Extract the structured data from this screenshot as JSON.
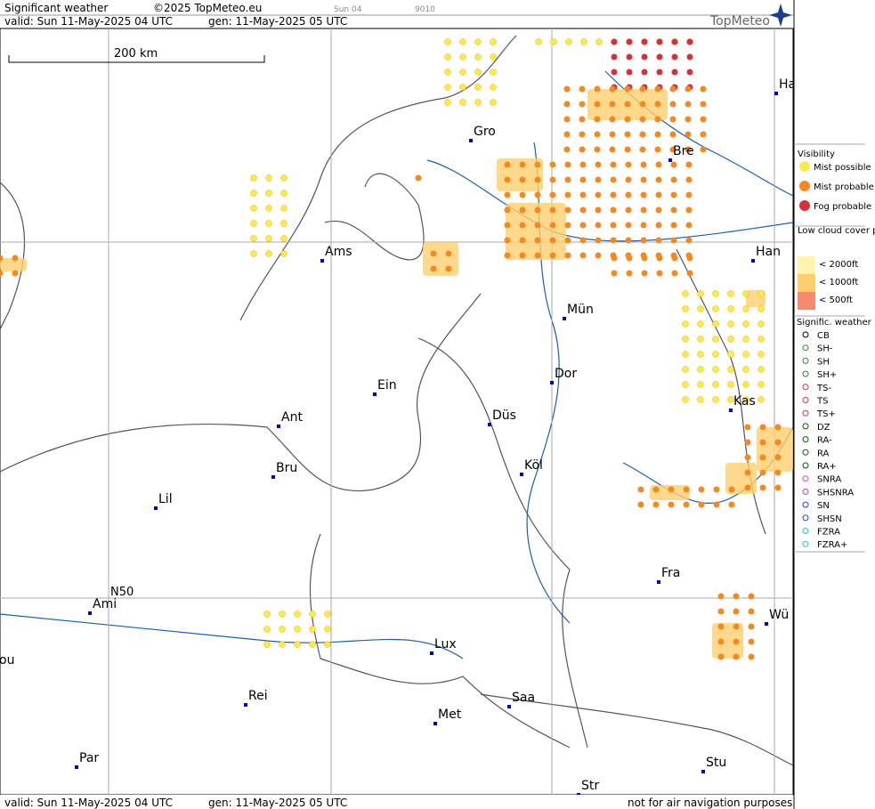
{
  "header": {
    "title": "Significant weather",
    "copyright": "©2025 TopMeteo.eu",
    "run": "Sun 04",
    "code": "9010",
    "valid": "valid:  Sun  11-May-2025  04 UTC",
    "generated": "gen: 11-May-2025 05 UTC",
    "logo": "TopMeteo"
  },
  "map": {
    "scale": "200 km",
    "latitude_label": "N50",
    "cities": [
      "Ha",
      "Gro",
      "Bre",
      "Ams",
      "Han",
      "Mün",
      "Dor",
      "Ein",
      "Kas",
      "Ant",
      "Düs",
      "Bru",
      "Köl",
      "Lil",
      "Ami",
      "Fra",
      "Wü",
      "Lux",
      "ou",
      "Rei",
      "Saa",
      "Met",
      "Par",
      "Stu",
      "Str"
    ]
  },
  "legend": {
    "visibility": {
      "title": "Visibility",
      "items": [
        "Mist possible",
        "Mist probable",
        "Fog probable"
      ]
    },
    "low_cloud": {
      "title": "Low cloud cover probable",
      "items": [
        "< 2000ft",
        "< 1000ft",
        "<   500ft"
      ]
    },
    "weather": {
      "title": "Signific. weather",
      "items": [
        "CB",
        "SH-",
        "SH",
        "SH+",
        "TS-",
        "TS",
        "TS+",
        "DZ",
        "RA-",
        "RA",
        "RA+",
        "SNRA",
        "SHSNRA",
        "SN",
        "SHSN",
        "FZRA",
        "FZRA+"
      ]
    }
  },
  "footer": {
    "valid": "valid:  Sun  11-May-2025  04 UTC",
    "generated": "gen: 11-May-2025 05 UTC",
    "disclaimer": "not for air navigation purposes"
  }
}
